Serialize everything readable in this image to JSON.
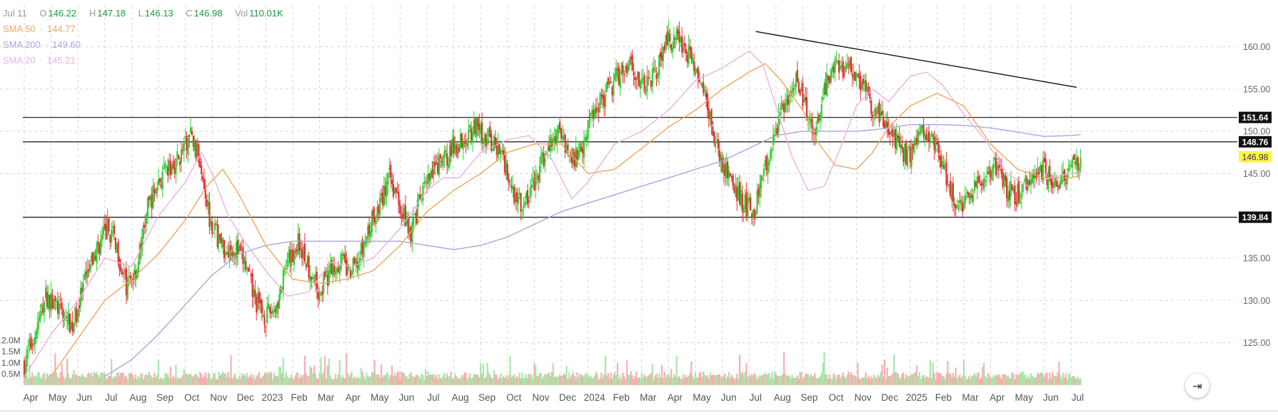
{
  "ohlc": {
    "date": "Jul 11",
    "open_label": "O",
    "open": "146.22",
    "high_label": "H",
    "high": "147.18",
    "low_label": "L",
    "low": "146.13",
    "close_label": "C",
    "close": "146.98",
    "vol_label": "Vol",
    "volume": "110.01K"
  },
  "indicators": [
    {
      "name": "SMA 50",
      "value": "144.77",
      "color": "#f0a660"
    },
    {
      "name": "SMA 200",
      "value": "149.60",
      "color": "#a7a6e0"
    },
    {
      "name": "SMA 20",
      "value": "145.21",
      "color": "#e9b2e0"
    }
  ],
  "colors": {
    "up": "#33cc33",
    "down": "#e03030",
    "vol_up": "#a8e6a8",
    "vol_down": "#f4b0b0",
    "grid": "#d8d8d8"
  },
  "scroll_button_icon": "scroll-to-latest-icon",
  "chart_data": {
    "type": "candlestick",
    "y_axis_ticks": [
      "160.00",
      "155.00",
      "150.00",
      "145.00",
      "135.00",
      "130.00",
      "125.00"
    ],
    "y_axis_ticks_values": [
      160,
      155,
      150,
      145,
      135,
      130,
      125
    ],
    "ylim": [
      121,
      163
    ],
    "volume_axis_ticks": [
      "2.0M",
      "1.5M",
      "1.0M",
      "0.5M"
    ],
    "volume_axis_values": [
      2.0,
      1.5,
      1.0,
      0.5
    ],
    "volume_max": 2.6,
    "x_axis_labels": [
      "Apr",
      "May",
      "Jun",
      "Jul",
      "Aug",
      "Sep",
      "Oct",
      "Nov",
      "Dec",
      "2023",
      "Feb",
      "Mar",
      "Apr",
      "May",
      "Jun",
      "Jul",
      "Aug",
      "Sep",
      "Oct",
      "Nov",
      "Dec",
      "2024",
      "Feb",
      "Mar",
      "Apr",
      "May",
      "Jun",
      "Jul",
      "Aug",
      "Sep",
      "Oct",
      "Nov",
      "Dec",
      "2025",
      "Feb",
      "Mar",
      "Apr",
      "May",
      "Jun",
      "Jul"
    ],
    "x_month_index": [
      0,
      1,
      2,
      3,
      4,
      5,
      6,
      7,
      8,
      9,
      10,
      11,
      12,
      13,
      14,
      15,
      16,
      17,
      18,
      19,
      20,
      21,
      22,
      23,
      24,
      25,
      26,
      27,
      28,
      29,
      30,
      31,
      32,
      33,
      34,
      35,
      36,
      37,
      38,
      39
    ],
    "x_span_months": [
      -0.2,
      39.9
    ],
    "last_bar_month": 39.35,
    "horizontal_levels": [
      {
        "value": 151.64,
        "label": "151.64"
      },
      {
        "value": 148.76,
        "label": "148.76"
      },
      {
        "value": 139.84,
        "label": "139.84"
      }
    ],
    "last_price": {
      "value": 146.98,
      "label": "146.98"
    },
    "trendline": {
      "start": {
        "month": 27.25,
        "value": 161.8
      },
      "end": {
        "month": 39.2,
        "value": 155.2
      }
    },
    "price_path": {
      "month": [
        0,
        0.4,
        0.8,
        1.3,
        1.8,
        2.3,
        2.7,
        3.1,
        3.4,
        3.8,
        4.2,
        4.6,
        5.0,
        5.4,
        5.8,
        6.2,
        6.6,
        6.9,
        7.2,
        7.5,
        7.8,
        8.2,
        8.6,
        9.0,
        9.4,
        9.8,
        10.2,
        10.6,
        11.0,
        11.4,
        11.8,
        12.1,
        12.5,
        12.9,
        13.2,
        13.6,
        14.0,
        14.4,
        14.8,
        15.2,
        15.6,
        16.0,
        16.4,
        16.8,
        17.3,
        17.8,
        18.2,
        18.6,
        19.0,
        19.4,
        19.7,
        20.0,
        20.4,
        20.8,
        21.0,
        21.4,
        21.8,
        22.2,
        22.6,
        23.0,
        23.5,
        24.0,
        24.5,
        25.0,
        25.5,
        26.0,
        26.5,
        26.9,
        27.2,
        27.5,
        27.9,
        28.3,
        28.7,
        29.0,
        29.4,
        29.8,
        30.2,
        30.6,
        31.0,
        31.4,
        31.8,
        32.2,
        32.6,
        33.0,
        33.4,
        33.8,
        34.2,
        34.6,
        35.0,
        35.4,
        35.8,
        36.2,
        36.6,
        37.0,
        37.4,
        37.8,
        38.2,
        38.6,
        39.0,
        39.35
      ],
      "close": [
        122.5,
        126.0,
        130.5,
        129.0,
        127.0,
        132.5,
        136.0,
        138.5,
        137.0,
        131.5,
        134.0,
        141.0,
        144.0,
        145.5,
        147.0,
        149.5,
        146.0,
        140.0,
        137.5,
        136.0,
        136.5,
        134.5,
        130.0,
        128.0,
        129.5,
        134.0,
        137.0,
        134.0,
        131.0,
        133.5,
        135.0,
        133.0,
        135.0,
        139.0,
        141.0,
        144.5,
        141.5,
        138.0,
        142.5,
        145.0,
        146.5,
        148.0,
        149.5,
        150.5,
        149.0,
        147.5,
        143.0,
        141.0,
        144.0,
        147.0,
        149.0,
        150.0,
        146.5,
        148.5,
        151.0,
        153.5,
        155.0,
        157.0,
        158.5,
        155.0,
        157.0,
        161.0,
        160.5,
        157.5,
        152.0,
        146.0,
        143.0,
        141.0,
        140.5,
        144.5,
        149.0,
        153.5,
        156.0,
        154.0,
        149.5,
        155.0,
        158.0,
        157.5,
        157.0,
        154.0,
        152.0,
        150.0,
        148.0,
        147.0,
        151.0,
        149.5,
        146.0,
        142.0,
        141.0,
        143.0,
        144.5,
        146.0,
        143.0,
        142.5,
        144.0,
        146.0,
        144.5,
        144.0,
        145.5,
        147.0
      ]
    },
    "sma20_path": {
      "month": [
        0,
        1.0,
        2.0,
        3.0,
        4.0,
        5.0,
        6.0,
        6.6,
        7.0,
        7.6,
        8.2,
        9.0,
        9.8,
        10.6,
        11.4,
        12.2,
        13.0,
        14.0,
        15.0,
        15.6,
        16.2,
        17.0,
        18.0,
        18.8,
        19.6,
        20.4,
        21.0,
        22.0,
        23.0,
        24.0,
        25.0,
        26.0,
        27.0,
        27.5,
        28.0,
        28.6,
        29.2,
        29.8,
        30.4,
        31.0,
        31.6,
        32.2,
        33.0,
        33.6,
        34.2,
        35.0,
        35.8,
        36.6,
        37.4,
        38.2,
        39.0,
        39.35
      ],
      "value": [
        121.0,
        126.0,
        130.0,
        135.0,
        134.0,
        140.0,
        144.0,
        147.5,
        145.0,
        140.0,
        137.0,
        133.5,
        130.5,
        131.0,
        134.5,
        134.0,
        135.0,
        138.5,
        143.0,
        144.5,
        144.5,
        147.5,
        149.0,
        149.5,
        147.0,
        142.0,
        144.0,
        148.5,
        150.0,
        152.5,
        156.0,
        157.5,
        159.5,
        158.0,
        153.0,
        147.0,
        143.0,
        143.5,
        148.0,
        153.0,
        155.0,
        153.5,
        156.5,
        157.0,
        155.5,
        152.0,
        149.0,
        145.0,
        143.5,
        144.5,
        145.0,
        145.2
      ]
    },
    "sma50_path": {
      "month": [
        1.0,
        2.0,
        3.0,
        4.0,
        5.0,
        6.0,
        6.8,
        7.4,
        8.0,
        9.0,
        10.0,
        11.0,
        12.0,
        13.0,
        14.0,
        15.0,
        16.0,
        17.0,
        18.0,
        19.0,
        20.0,
        21.0,
        22.0,
        23.0,
        24.0,
        25.0,
        26.0,
        27.0,
        27.6,
        28.2,
        29.0,
        29.6,
        30.2,
        31.0,
        31.6,
        32.2,
        33.0,
        34.0,
        35.0,
        36.0,
        37.0,
        38.0,
        39.0,
        39.35
      ],
      "value": [
        121.0,
        125.5,
        130.0,
        132.5,
        135.5,
        139.5,
        143.5,
        145.5,
        142.5,
        136.5,
        132.5,
        132.0,
        132.5,
        133.5,
        136.5,
        140.5,
        143.0,
        145.0,
        147.5,
        148.5,
        148.5,
        145.0,
        145.5,
        148.0,
        150.5,
        152.5,
        155.0,
        157.0,
        158.0,
        156.0,
        152.5,
        148.5,
        146.0,
        145.5,
        147.5,
        150.5,
        153.0,
        154.5,
        153.0,
        148.5,
        145.5,
        144.5,
        144.5,
        144.8
      ]
    },
    "sma200_path": {
      "month": [
        3.0,
        4.0,
        5.0,
        6.0,
        7.0,
        8.0,
        9.0,
        10.0,
        11.0,
        12.0,
        13.0,
        14.0,
        15.0,
        16.0,
        17.0,
        18.0,
        19.0,
        20.0,
        21.0,
        22.0,
        23.0,
        24.0,
        25.0,
        26.0,
        27.0,
        28.0,
        29.0,
        30.0,
        31.0,
        32.0,
        33.0,
        34.0,
        35.0,
        36.0,
        37.0,
        38.0,
        39.0,
        39.35
      ],
      "value": [
        121.0,
        123.0,
        126.0,
        129.5,
        133.0,
        135.5,
        136.5,
        137.0,
        137.0,
        137.0,
        137.0,
        137.0,
        136.5,
        136.0,
        136.5,
        137.5,
        139.0,
        140.5,
        141.5,
        142.5,
        143.5,
        144.5,
        145.5,
        146.5,
        148.0,
        149.5,
        150.0,
        150.0,
        150.0,
        150.3,
        150.8,
        150.8,
        150.7,
        150.4,
        149.9,
        149.4,
        149.5,
        149.6
      ]
    }
  }
}
